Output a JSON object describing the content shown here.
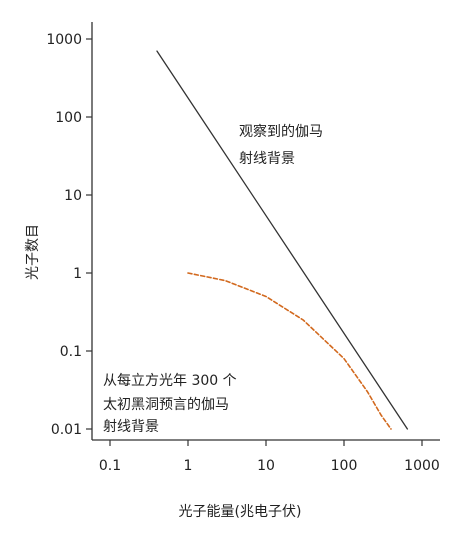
{
  "chart_data": {
    "type": "line",
    "xlabel": "光子能量(兆电子伏)",
    "ylabel": "光子数目",
    "x_scale": "log",
    "y_scale": "log",
    "xlim": [
      0.05,
      1200
    ],
    "ylim": [
      0.008,
      1300
    ],
    "x_ticks": [
      {
        "value": 0.1,
        "label": "0.1"
      },
      {
        "value": 1,
        "label": "1"
      },
      {
        "value": 10,
        "label": "10"
      },
      {
        "value": 100,
        "label": "100"
      },
      {
        "value": 1000,
        "label": "1000"
      }
    ],
    "y_ticks": [
      {
        "value": 0.01,
        "label": "0.01"
      },
      {
        "value": 0.1,
        "label": "0.1"
      },
      {
        "value": 1,
        "label": "1"
      },
      {
        "value": 10,
        "label": "10"
      },
      {
        "value": 100,
        "label": "100"
      },
      {
        "value": 1000,
        "label": "1000"
      }
    ],
    "grid": false,
    "legend": "none",
    "series": [
      {
        "style": "solid",
        "color": "#333333",
        "points": [
          [
            0.4,
            700
          ],
          [
            650,
            0.01
          ]
        ]
      },
      {
        "style": "dashed",
        "color": "#d2691e",
        "points": [
          [
            1,
            1
          ],
          [
            3,
            0.8
          ],
          [
            10,
            0.5
          ],
          [
            30,
            0.25
          ],
          [
            100,
            0.08
          ],
          [
            200,
            0.03
          ],
          [
            300,
            0.015
          ],
          [
            400,
            0.01
          ]
        ]
      }
    ],
    "annotations": [
      {
        "lines": [
          "观察到的伽马",
          "射线背景"
        ]
      },
      {
        "lines": [
          "从每立方光年 300 个",
          "太初黑洞预言的伽马",
          "射线背景"
        ]
      }
    ]
  }
}
